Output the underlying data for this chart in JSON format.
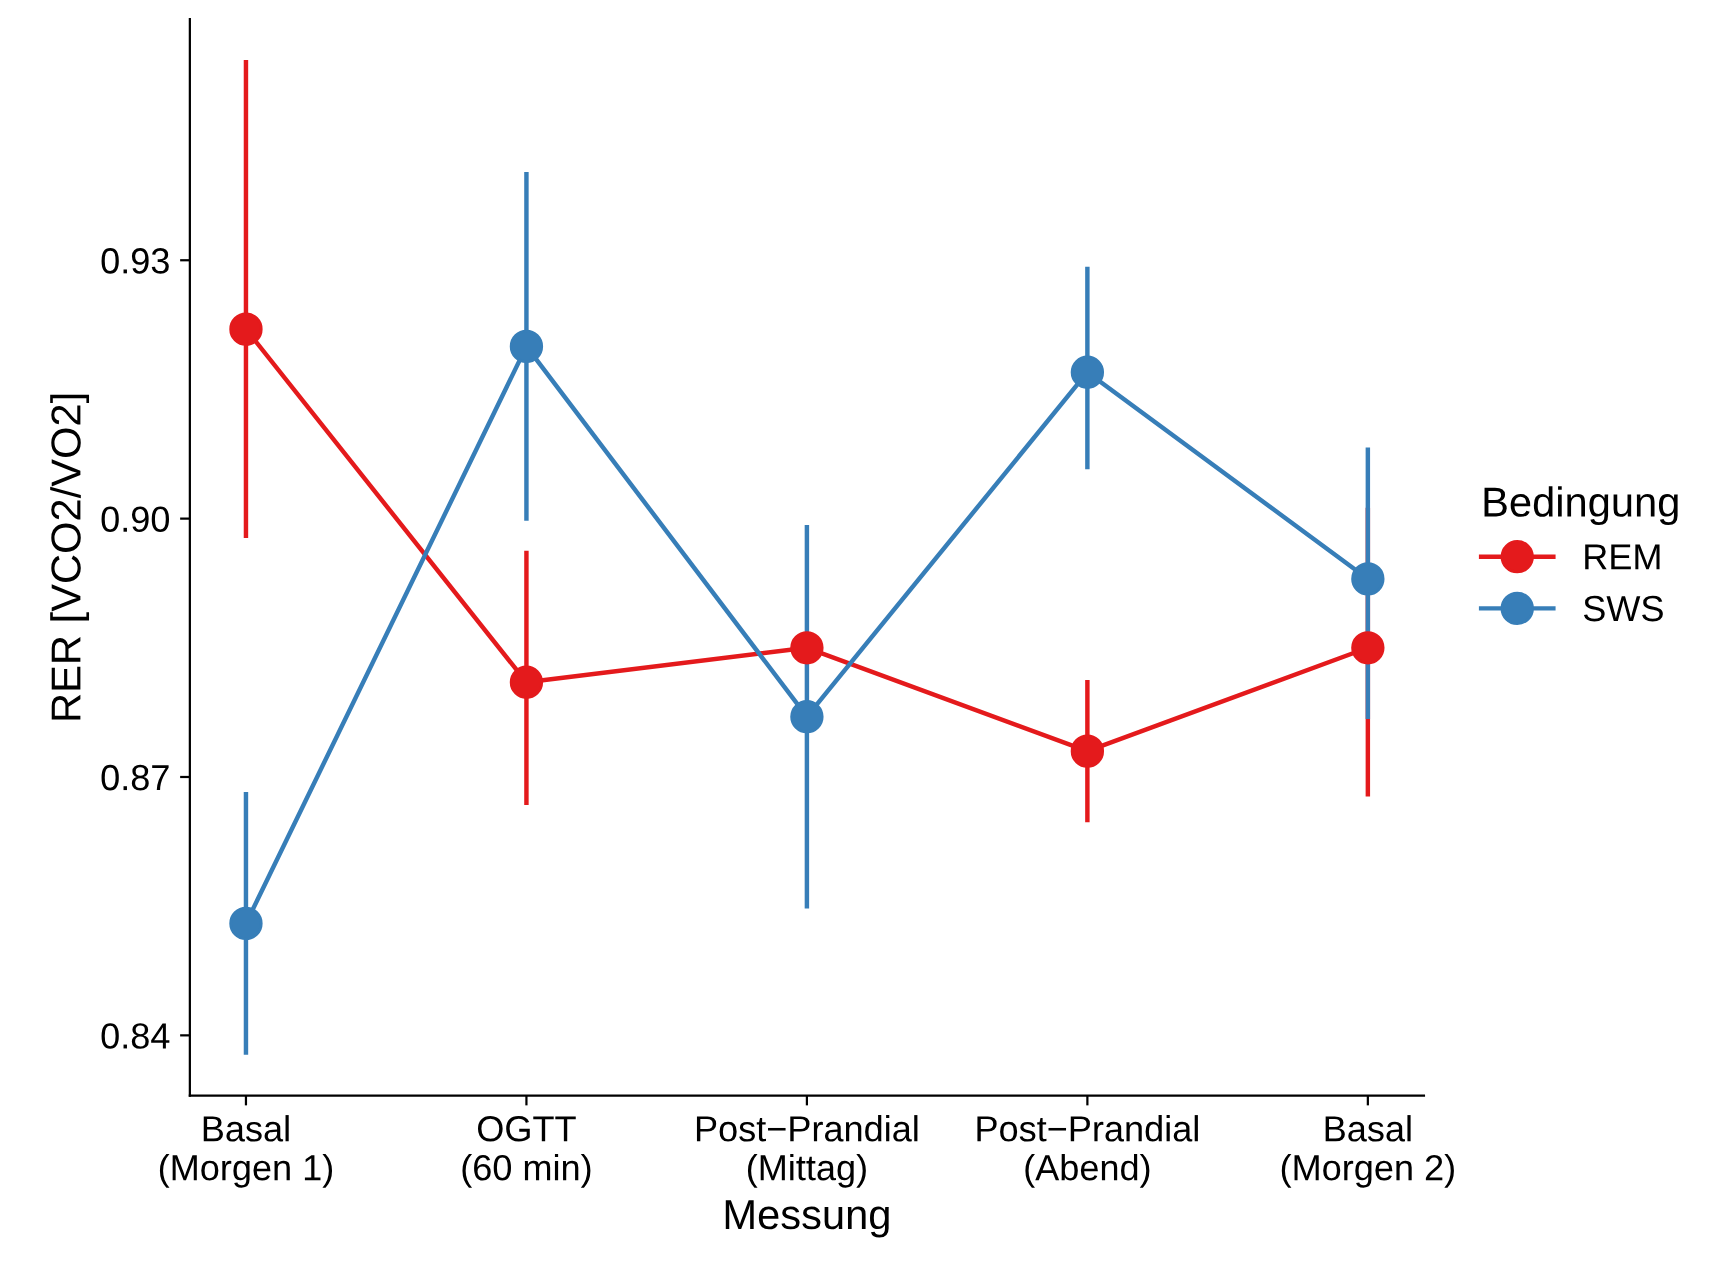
{
  "chart_data": {
    "type": "line",
    "xlabel": "Messung",
    "ylabel": "RER [VCO2/VO2]",
    "legend_title": "Bedingung",
    "legend": "right",
    "grid": false,
    "marker": "circle",
    "line_style": "solid",
    "categories": [
      "Basal\n(Morgen 1)",
      "OGTT\n(60 min)",
      "Post−Prandial\n(Mittag)",
      "Post−Prandial\n(Abend)",
      "Basal\n(Morgen 2)"
    ],
    "ylim": [
      0.833,
      0.958
    ],
    "yticks": [
      {
        "value": 0.84,
        "label": "0.84"
      },
      {
        "value": 0.87,
        "label": "0.87"
      },
      {
        "value": 0.9,
        "label": "0.90"
      },
      {
        "value": 0.93,
        "label": "0.93"
      }
    ],
    "series": [
      {
        "name": "REM",
        "color": "#e41a1c",
        "values": [
          0.922,
          0.881,
          0.885,
          0.873,
          0.885
        ],
        "errors": [
          [
            0.898,
            0.953
          ],
          [
            0.867,
            0.896
          ],
          null,
          [
            0.865,
            0.881
          ],
          [
            0.868,
            0.901
          ]
        ]
      },
      {
        "name": "SWS",
        "color": "#377eb8",
        "values": [
          0.853,
          0.92,
          0.877,
          0.917,
          0.893
        ],
        "errors": [
          [
            0.838,
            0.868
          ],
          [
            0.9,
            0.94
          ],
          [
            0.855,
            0.899
          ],
          [
            0.906,
            0.929
          ],
          [
            0.877,
            0.908
          ]
        ]
      }
    ]
  }
}
